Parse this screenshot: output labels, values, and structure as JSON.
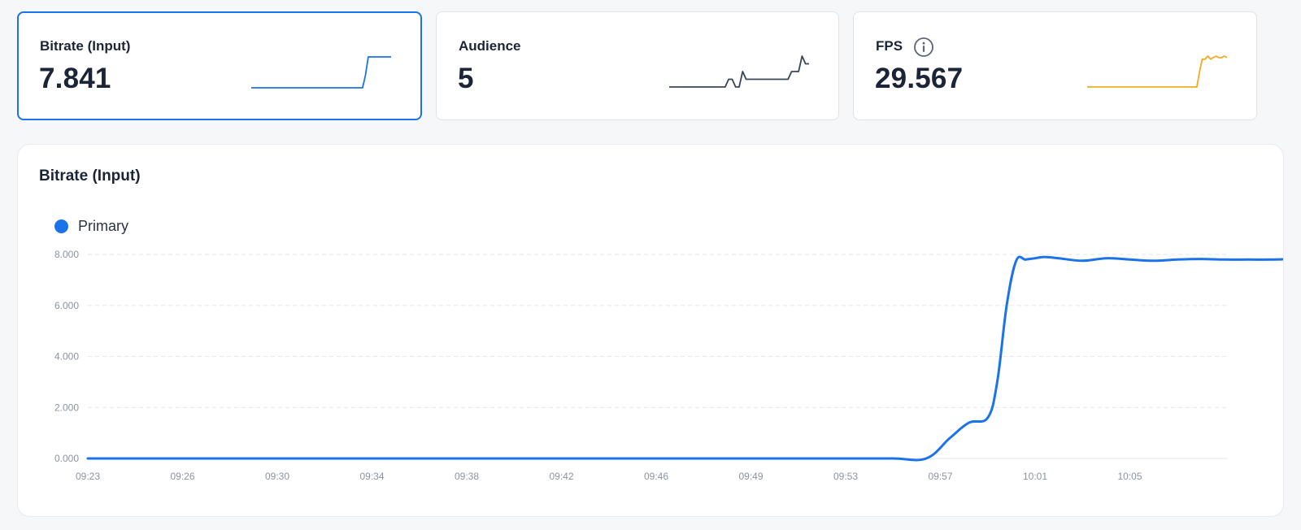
{
  "cards": [
    {
      "label": "Bitrate (Input)",
      "value": "7.841",
      "spark_color": "#1a73e8",
      "spark_points": [
        0,
        0,
        0,
        0,
        0,
        0,
        0,
        0,
        0,
        0,
        0,
        0,
        0,
        0,
        0,
        0,
        0,
        0,
        0,
        0,
        0,
        0,
        0,
        0,
        0,
        0,
        0,
        0,
        0,
        0,
        0,
        0,
        0,
        0,
        0,
        0,
        0,
        0,
        0,
        0,
        0.4,
        1,
        1,
        1,
        1,
        1,
        1,
        1,
        1,
        1
      ]
    },
    {
      "label": "Audience",
      "value": "5",
      "spark_color": "#3a4558",
      "spark_points": [
        0,
        0,
        0,
        0,
        0,
        0,
        0,
        0,
        0,
        0,
        0,
        0,
        0,
        0,
        0,
        0,
        0,
        0.25,
        0.25,
        0,
        0,
        0.5,
        0.25,
        0.25,
        0.25,
        0.25,
        0.25,
        0.25,
        0.25,
        0.25,
        0.25,
        0.25,
        0.25,
        0.25,
        0.25,
        0.5,
        0.5,
        0.5,
        1,
        0.75,
        0.75
      ]
    },
    {
      "label": "FPS",
      "value": "29.567",
      "spark_color": "#f0ab22",
      "spark_points": [
        0,
        0,
        0,
        0,
        0,
        0,
        0,
        0,
        0,
        0,
        0,
        0,
        0,
        0,
        0,
        0,
        0,
        0,
        0,
        0,
        0,
        0,
        0,
        0,
        0,
        0,
        0,
        0,
        0,
        0,
        0,
        0,
        0,
        0,
        0,
        0,
        0,
        0,
        0,
        0,
        0,
        0.5,
        0.9,
        0.9,
        1,
        0.9,
        0.95,
        1,
        0.95,
        0.95,
        1,
        0.95
      ]
    }
  ],
  "info_icon": "info-icon",
  "panel": {
    "title": "Bitrate (Input)",
    "legend": "Primary"
  },
  "chart_data": {
    "type": "line",
    "title": "Bitrate (Input)",
    "xlabel": "",
    "ylabel": "",
    "ylim": [
      0,
      8
    ],
    "yticks": [
      "0.000",
      "2.000",
      "4.000",
      "6.000",
      "8.000"
    ],
    "xticks": [
      "09:23",
      "09:26",
      "09:30",
      "09:34",
      "09:38",
      "09:42",
      "09:46",
      "09:49",
      "09:53",
      "09:57",
      "10:01",
      "10:05"
    ],
    "grid": "horizontal-dashed",
    "legend_position": "top-left",
    "series": [
      {
        "name": "Primary",
        "color": "#1a73e8",
        "x": [
          0,
          0.5,
          1,
          1.5,
          2,
          2.5,
          3,
          3.5,
          4,
          4.5,
          5,
          5.5,
          6,
          6.5,
          7,
          7.5,
          8,
          8.5,
          8.85,
          9.1,
          9.3,
          9.5,
          9.6,
          9.7,
          9.8,
          9.9,
          10.0,
          10.1,
          10.25,
          10.5,
          10.75,
          11.0,
          11.25,
          11.5,
          11.75,
          12.0,
          12.25,
          12.5,
          12.75,
          13.05
        ],
        "values": [
          0,
          0,
          0,
          0,
          0,
          0,
          0,
          0,
          0,
          0,
          0,
          0,
          0,
          0,
          0,
          0,
          0,
          0,
          0,
          0.8,
          1.4,
          1.6,
          3.0,
          6.0,
          7.75,
          7.8,
          7.85,
          7.9,
          7.85,
          7.75,
          7.85,
          7.8,
          7.75,
          7.8,
          7.82,
          7.8,
          7.8,
          7.8,
          7.82,
          7.84
        ]
      }
    ]
  }
}
